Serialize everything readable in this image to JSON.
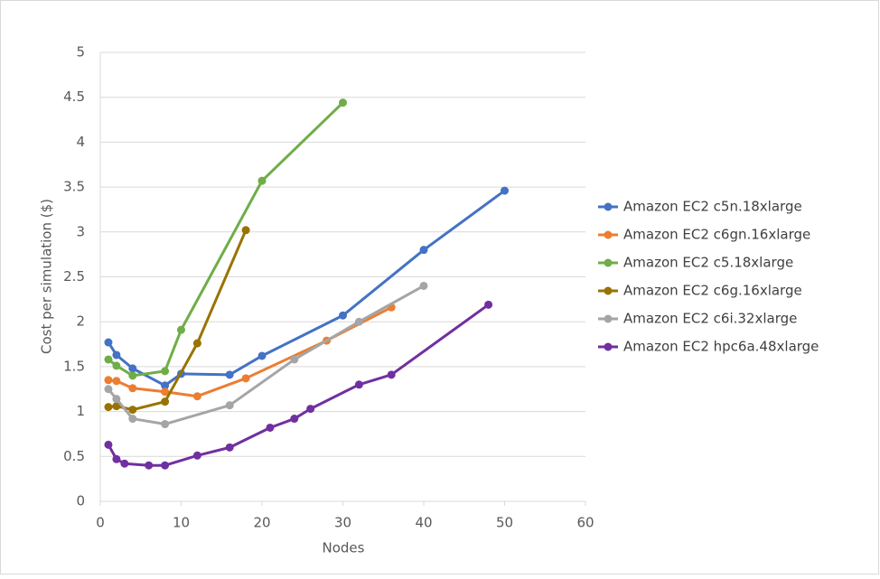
{
  "chart_data": {
    "type": "line",
    "y_label": "Cost per simulation ($)",
    "x_label": "Nodes",
    "xlim": [
      0,
      60
    ],
    "xticks": [
      0,
      10,
      20,
      30,
      40,
      50,
      60
    ],
    "ylim": [
      0,
      5
    ],
    "yticks": [
      0,
      0.5,
      1,
      1.5,
      2,
      2.5,
      3,
      3.5,
      4,
      4.5,
      5
    ],
    "grid": true,
    "legend": "right",
    "series": [
      {
        "name": "Amazon EC2 c5n.18xlarge",
        "color": "#4472c4",
        "x": [
          1,
          2,
          4,
          8,
          10,
          16,
          20,
          30,
          40,
          50
        ],
        "values": [
          1.77,
          1.63,
          1.48,
          1.29,
          1.42,
          1.41,
          1.62,
          2.07,
          2.8,
          3.46
        ]
      },
      {
        "name": "Amazon EC2 c6gn.16xlarge",
        "color": "#ed7d31",
        "x": [
          1,
          2,
          4,
          8,
          12,
          18,
          28,
          36
        ],
        "values": [
          1.35,
          1.34,
          1.26,
          1.22,
          1.17,
          1.37,
          1.79,
          2.16
        ]
      },
      {
        "name": "Amazon EC2 c5.18xlarge",
        "color": "#70ad47",
        "x": [
          1,
          2,
          4,
          8,
          10,
          20,
          30
        ],
        "values": [
          1.58,
          1.51,
          1.4,
          1.45,
          1.91,
          3.57,
          4.44
        ]
      },
      {
        "name": "Amazon EC2 c6g.16xlarge",
        "color": "#997300",
        "x": [
          1,
          2,
          4,
          8,
          12,
          18
        ],
        "values": [
          1.05,
          1.06,
          1.02,
          1.11,
          1.76,
          3.02
        ]
      },
      {
        "name": "Amazon EC2 c6i.32xlarge",
        "color": "#a5a5a5",
        "x": [
          1,
          2,
          4,
          8,
          16,
          24,
          32,
          40
        ],
        "values": [
          1.25,
          1.14,
          0.92,
          0.86,
          1.07,
          1.58,
          2.0,
          2.4
        ]
      },
      {
        "name": "Amazon EC2 hpc6a.48xlarge",
        "color": "#7030a0",
        "x": [
          1,
          2,
          3,
          6,
          8,
          12,
          16,
          21,
          24,
          26,
          32,
          36,
          48
        ],
        "values": [
          0.63,
          0.47,
          0.42,
          0.4,
          0.4,
          0.51,
          0.6,
          0.82,
          0.92,
          1.03,
          1.3,
          1.41,
          2.19
        ]
      }
    ]
  }
}
